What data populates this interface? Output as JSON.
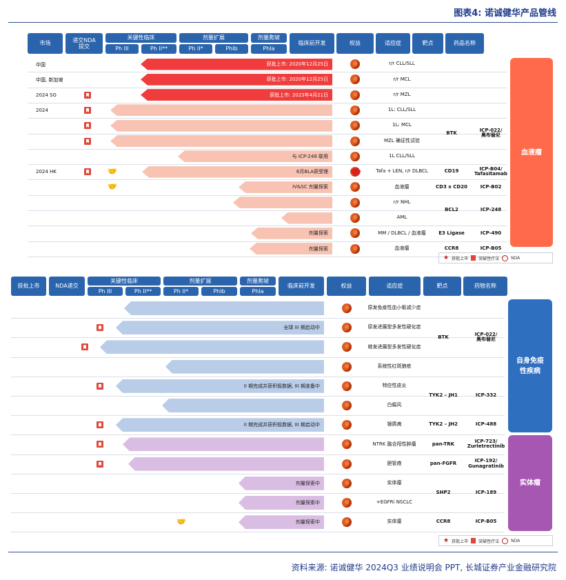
{
  "title": "图表4: 诺诚健华产品管线",
  "source": "资料来源: 诺诚健华 2024Q3 业绩说明会 PPT, 长城证券产业金融研究院",
  "legend": {
    "approved": "获批上市",
    "breakthrough": "突破性疗法",
    "nda": "NDA"
  },
  "panel1": {
    "headers": {
      "drug": "药品名称",
      "target": "靶点",
      "indication": "适应症",
      "rights": "权益",
      "pre": "临床前开发",
      "dose": "剂量爬坡",
      "ph1a": "PhIa",
      "dose_exp": "剂量扩展",
      "ph1b": "PhIb",
      "ph2": "Ph II*",
      "pivotal": "关键性临床",
      "ph2b": "Ph II**",
      "ph3": "Ph III",
      "nda": "递交NDA\n提交",
      "market": "市场"
    },
    "category": "血液瘤",
    "rows": [
      {
        "drug": "",
        "target": "",
        "indication": "r/r CLL/SLL",
        "label": "获批上市: 2020年12月25日",
        "market": "中国"
      },
      {
        "drug": "",
        "target": "",
        "indication": "r/r MCL",
        "label": "获批上市: 2020年12月25日",
        "market": "中国, 新加坡"
      },
      {
        "drug": "",
        "target": "",
        "indication": "r/r MZL",
        "label": "获批上市: 2023年4月21日",
        "market": "2024 SG"
      },
      {
        "drug": "ICP-022/\n奥布替尼",
        "target": "BTK",
        "indication": "1L: CLL/SLL",
        "label": "",
        "market": "2024"
      },
      {
        "drug": "",
        "target": "",
        "indication": "1L: MCL",
        "label": "",
        "market": ""
      },
      {
        "drug": "",
        "target": "",
        "indication": "MZL 确证性试验",
        "label": "",
        "market": ""
      },
      {
        "drug": "",
        "target": "",
        "indication": "1L CLL/SLL",
        "label": "与 ICP-248 联用",
        "market": ""
      },
      {
        "drug": "ICP-B04/\nTafasitamab",
        "target": "CD19",
        "indication": "Tafa + LEN, r/r DLBCL",
        "label": "6月BLA获受理",
        "market": "2024  HK"
      },
      {
        "drug": "ICP-B02",
        "target": "CD3 x CD20",
        "indication": "血液瘤",
        "label": "IV&SC 剂量探索",
        "market": ""
      },
      {
        "drug": "ICP-248",
        "target": "BCL2",
        "indication": "r/r NHL",
        "label": "",
        "market": ""
      },
      {
        "drug": "",
        "target": "",
        "indication": "AML",
        "label": "",
        "market": ""
      },
      {
        "drug": "ICP-490",
        "target": "E3 Ligase",
        "indication": "MM / DLBCL / 血液瘤",
        "label": "剂量探索",
        "market": ""
      },
      {
        "drug": "ICP-B05",
        "target": "CCR8",
        "indication": "血液瘤",
        "label": "剂量探索",
        "market": ""
      }
    ]
  },
  "panel2": {
    "headers": {
      "drug": "药物名称",
      "target": "靶点",
      "indication": "适应症",
      "rights": "权益",
      "pre": "临床前开发",
      "dose": "剂量爬坡",
      "ph1a": "PhIa",
      "dose_exp": "剂量扩展",
      "ph1b": "PhIb",
      "ph2": "Ph II*",
      "pivotal": "关键性临床",
      "ph2b": "Ph II**",
      "ph3": "Ph III",
      "nda": "NDA递交",
      "market": "获批上市"
    },
    "categories": [
      "自身免疫\n性疾病",
      "实体瘤"
    ],
    "rows": [
      {
        "drug": "",
        "target": "",
        "indication": "原发免疫性血小板减少症",
        "label": ""
      },
      {
        "drug": "ICP-022/\n奥布替尼",
        "target": "BTK",
        "indication": "原发进展型多发性硬化症",
        "label": "全球 III 期启动中"
      },
      {
        "drug": "",
        "target": "",
        "indication": "继发进展型多发性硬化症",
        "label": ""
      },
      {
        "drug": "",
        "target": "",
        "indication": "系统性红斑狼疮",
        "label": ""
      },
      {
        "drug": "ICP-332",
        "target": "TYK2 – JH1",
        "indication": "特应性皮炎",
        "label": "II 期完成并获积极数据, III 期准备中"
      },
      {
        "drug": "",
        "target": "",
        "indication": "白癜风",
        "label": ""
      },
      {
        "drug": "ICP-488",
        "target": "TYK2 – JH2",
        "indication": "银屑病",
        "label": "II 期完成并获积极数据, III 期启动中"
      },
      {
        "drug": "ICP-723/\nZurletrectinib",
        "target": "pan-TRK",
        "indication": "NTRK 融合阳性肿瘤",
        "label": ""
      },
      {
        "drug": "ICP-192/\nGunagratinib",
        "target": "pan-FGFR",
        "indication": "胆管癌",
        "label": ""
      },
      {
        "drug": "ICP-189",
        "target": "SHP2",
        "indication": "实体瘤",
        "label": "剂量探索中"
      },
      {
        "drug": "",
        "target": "",
        "indication": "+EGFRi NSCLC",
        "label": "剂量探索中"
      },
      {
        "drug": "ICP-B05",
        "target": "CCR8",
        "indication": "实体瘤",
        "label": "剂量探索中"
      }
    ]
  }
}
